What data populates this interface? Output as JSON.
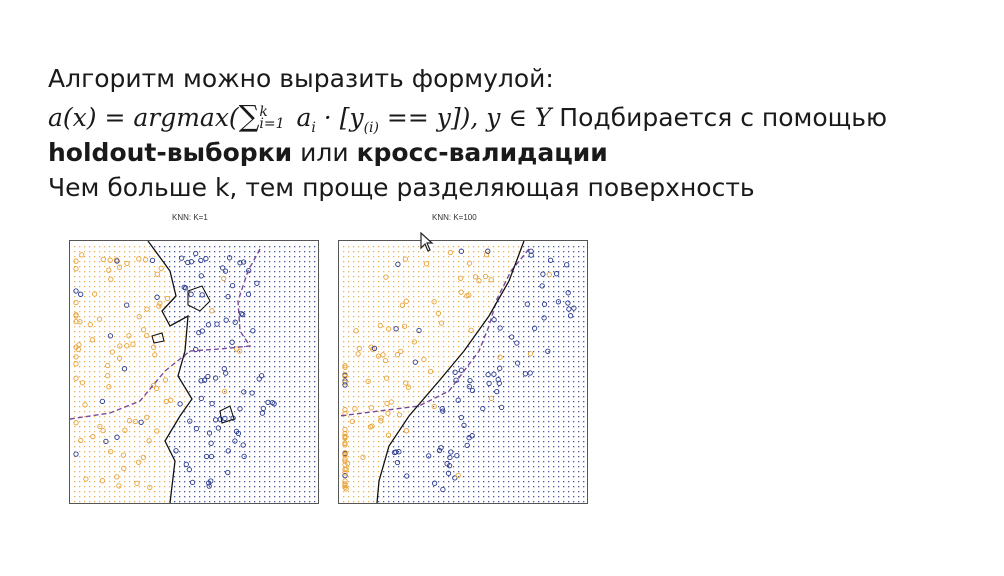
{
  "slide": {
    "line1": "Алгоритм можно выразить формулой:",
    "formula": {
      "lhs": "a(x) = argmax(",
      "sum_upper": "k",
      "sum_lower": "i=1",
      "term_a": " a",
      "term_a_sub": "i",
      "term_mid": " · [y",
      "term_y_sub": "(i)",
      "term_end": " == y]), y ∈ Y"
    },
    "line2_rest": "Подбирается с помощью",
    "line3_bold1": "holdout-выборки",
    "line3_mid": " или ",
    "line3_bold2": "кросс-валидации",
    "line4": "Чем больше k, тем проще разделяющая поверхность"
  },
  "plots": [
    {
      "title": "KNN: K=1",
      "k": 1
    },
    {
      "title": "KNN: K=100",
      "k": 100
    }
  ],
  "colors": {
    "class_orange": "#e8a33a",
    "class_blue": "#2b3b8f",
    "boundary": "#111111",
    "bayes_boundary": "#7a4a9a"
  }
}
